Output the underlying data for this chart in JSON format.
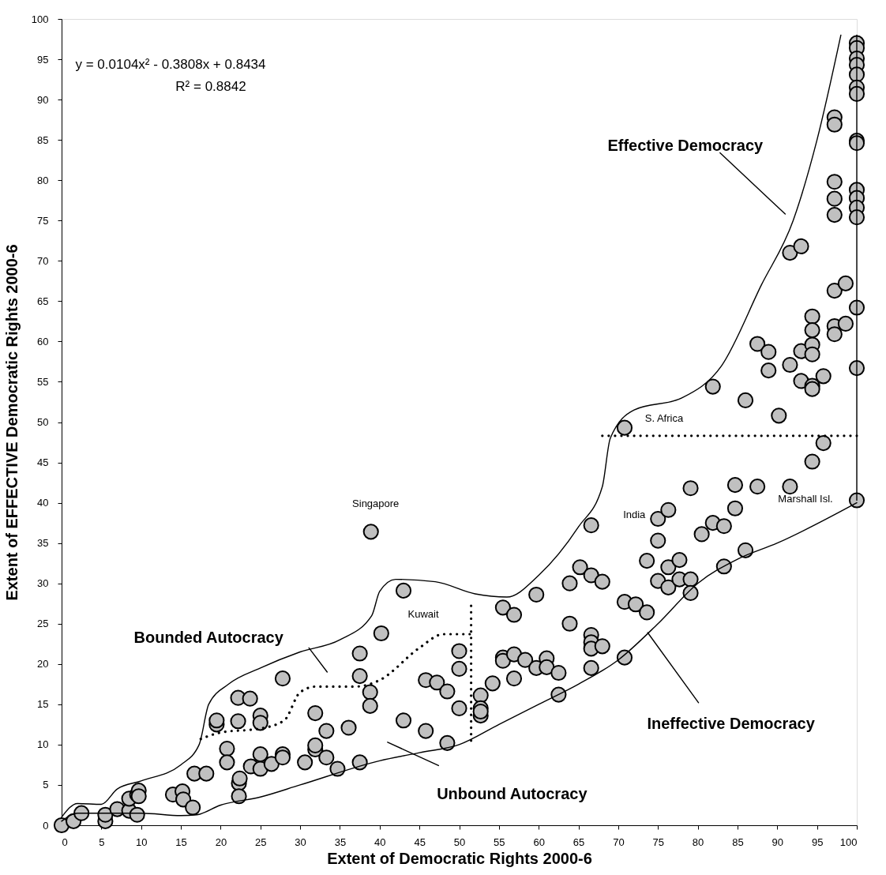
{
  "chart_data": {
    "type": "scatter",
    "xlabel": "Extent of Democratic Rights 2000-6",
    "ylabel": "Extent of EFFECTIVE Democratic Rights 2000-6",
    "xlim": [
      0,
      100
    ],
    "ylim": [
      0,
      100
    ],
    "xticks": [
      0,
      5,
      10,
      15,
      20,
      25,
      30,
      35,
      40,
      45,
      50,
      55,
      60,
      65,
      70,
      75,
      80,
      85,
      90,
      95,
      100
    ],
    "yticks": [
      0,
      5,
      10,
      15,
      20,
      25,
      30,
      35,
      40,
      45,
      50,
      55,
      60,
      65,
      70,
      75,
      80,
      85,
      90,
      95,
      100
    ],
    "series": [
      {
        "marker": "circle",
        "color": "#c0c0c0",
        "x": [
          0,
          1.5,
          2.5,
          5.5,
          5.5,
          7,
          8.5,
          8.5,
          9.5,
          9.5,
          9.7,
          9.7,
          14,
          15.2,
          15.3,
          16.5,
          16.7,
          18.2,
          19.5,
          19.5,
          20.8,
          20.8,
          22.2,
          22.2,
          22.3,
          22.3,
          22.4,
          23.7,
          23.8,
          25,
          25,
          25,
          25,
          26.4,
          27.8,
          27.8,
          27.8,
          30.6,
          31.9,
          31.9,
          31.9,
          33.3,
          33.3,
          34.7,
          36.1,
          37.5,
          37.5,
          37.5,
          38.8,
          38.8,
          38.9,
          40.2,
          43,
          43,
          45.8,
          45.8,
          47.2,
          48.5,
          48.5,
          50,
          50,
          50,
          52.7,
          52.7,
          52.7,
          52.7,
          54.2,
          55.5,
          55.5,
          55.5,
          56.9,
          56.9,
          56.9,
          58.3,
          59.7,
          59.7,
          61,
          61,
          62.5,
          62.5,
          63.9,
          63.9,
          65.2,
          66.6,
          66.6,
          66.6,
          66.6,
          66.6,
          66.6,
          68,
          68,
          70.8,
          70.8,
          70.8,
          72.2,
          73.6,
          73.6,
          75,
          75,
          75,
          76.3,
          76.3,
          76.3,
          77.7,
          77.7,
          79.1,
          79.1,
          79.1,
          80.5,
          81.9,
          81.9,
          83.3,
          83.3,
          84.7,
          84.7,
          86,
          86,
          87.5,
          87.5,
          88.9,
          88.9,
          90.2,
          91.6,
          91.6,
          91.6,
          93,
          93,
          93,
          94.4,
          94.4,
          94.4,
          94.4,
          94.4,
          94.4,
          94.4,
          95.8,
          95.8,
          97.2,
          97.2,
          97.2,
          97.2,
          97.2,
          97.2,
          97.2,
          97.2,
          98.6,
          98.6,
          100,
          100,
          100,
          100,
          100,
          100,
          100,
          100,
          100,
          100,
          100,
          100,
          100,
          100,
          100,
          100
        ],
        "values": [
          0,
          0.5,
          1.5,
          0.5,
          1.3,
          2,
          1.8,
          3.3,
          3.8,
          1.3,
          4.3,
          3.6,
          3.8,
          4.2,
          3.2,
          2.2,
          6.4,
          6.4,
          12.5,
          13,
          9.5,
          7.8,
          15.8,
          12.9,
          5.2,
          3.6,
          5.8,
          15.7,
          7.3,
          13.6,
          12.7,
          8.8,
          7,
          7.6,
          18.2,
          8.8,
          8.4,
          7.8,
          13.9,
          9.4,
          9.9,
          11.7,
          8.4,
          7,
          12.1,
          21.3,
          18.5,
          7.8,
          16.5,
          14.8,
          36.4,
          23.8,
          29.1,
          13,
          18,
          11.7,
          17.7,
          16.6,
          10.2,
          21.6,
          19.4,
          14.5,
          16.1,
          14.5,
          13.6,
          14.1,
          17.6,
          27,
          20.8,
          20.4,
          26.1,
          21.2,
          18.2,
          20.5,
          28.6,
          19.5,
          20.7,
          19.6,
          18.9,
          16.2,
          30,
          25,
          32,
          37.2,
          31,
          23.6,
          22.7,
          21.9,
          19.5,
          30.2,
          22.2,
          49.3,
          27.7,
          20.8,
          27.4,
          26.4,
          32.8,
          38,
          35.3,
          30.3,
          39.1,
          32,
          29.5,
          32.9,
          30.5,
          41.8,
          30.5,
          28.8,
          36.1,
          54.4,
          37.5,
          37.1,
          32.1,
          42.2,
          39.3,
          52.7,
          34.1,
          59.7,
          42,
          58.7,
          56.4,
          50.8,
          71,
          57.1,
          42,
          71.8,
          58.8,
          55.1,
          63.1,
          61.4,
          59.6,
          58.4,
          54.5,
          54.1,
          45.1,
          55.7,
          47.4,
          87.8,
          86.9,
          79.8,
          77.7,
          75.7,
          66.3,
          61.9,
          60.9,
          67.2,
          62.2,
          97,
          96.4,
          95.1,
          94.3,
          93.1,
          91.5,
          90.7,
          84.9,
          84.6,
          78.8,
          77.8,
          76.6,
          75.4,
          64.2,
          56.7,
          40.3
        ]
      },
      {
        "type": "line",
        "color": "#000000",
        "line_style": "solid",
        "x": [
          0,
          2,
          5,
          7,
          10,
          15,
          17.3,
          18.5,
          21,
          25,
          30,
          35,
          39,
          40,
          42,
          47,
          52,
          56,
          60,
          65,
          68,
          69,
          72,
          78,
          83,
          88,
          92,
          95,
          98
        ],
        "values": [
          1,
          2.7,
          2.6,
          4.5,
          5.5,
          7.5,
          10,
          15,
          17.5,
          19.5,
          21.5,
          23,
          26,
          29,
          30.5,
          30.2,
          28.7,
          28.3,
          31,
          37,
          42,
          48,
          51.5,
          53,
          57,
          67,
          75,
          85,
          98
        ]
      },
      {
        "type": "line",
        "color": "#000000",
        "line_style": "solid",
        "x": [
          0,
          2,
          5,
          10,
          15,
          17,
          20,
          25,
          30,
          40,
          45,
          50,
          55,
          60,
          65,
          70,
          75,
          80,
          85,
          90,
          100
        ],
        "values": [
          0.5,
          1.5,
          1.5,
          1.5,
          1.2,
          1.3,
          2.5,
          3.5,
          5,
          8,
          9,
          10,
          12.5,
          15,
          17.5,
          20.5,
          25,
          30,
          33,
          35,
          40
        ]
      },
      {
        "type": "line",
        "color": "#000000",
        "line_style": "solid",
        "x": [
          100,
          100
        ],
        "values": [
          40.3,
          98
        ]
      },
      {
        "type": "line",
        "color": "#000000",
        "line_style": "dotted",
        "x": [
          17.5,
          20,
          25,
          28,
          30,
          32,
          37,
          40,
          45,
          48,
          51.5
        ],
        "values": [
          10.7,
          11.5,
          12,
          13,
          16.5,
          17.2,
          17.2,
          18,
          22,
          23.7,
          23.7
        ]
      },
      {
        "type": "line",
        "color": "#000000",
        "line_style": "dotted",
        "x": [
          51.5,
          51.5
        ],
        "values": [
          10.5,
          28
        ]
      },
      {
        "type": "line",
        "color": "#000000",
        "line_style": "dotted",
        "x": [
          68,
          100
        ],
        "values": [
          48.3,
          48.3
        ]
      },
      {
        "type": "line",
        "color": "#000000",
        "line_style": "solid",
        "x": [
          82.8,
          91
        ],
        "values": [
          83.4,
          75.8
        ]
      },
      {
        "type": "line",
        "color": "#000000",
        "line_style": "solid",
        "x": [
          31.1,
          33.4
        ],
        "values": [
          22,
          19
        ]
      },
      {
        "type": "line",
        "color": "#000000",
        "line_style": "solid",
        "x": [
          41,
          47.4
        ],
        "values": [
          10.3,
          7.4
        ]
      },
      {
        "type": "line",
        "color": "#000000",
        "line_style": "solid",
        "x": [
          73.7,
          80.1
        ],
        "values": [
          23.9,
          15.2
        ]
      }
    ],
    "annotations": [
      "y = 0.0104x² - 0.3808x + 0.8434",
      "R² = 0.8842",
      {
        "text": "Singapore",
        "x": 38.9,
        "y": 36.4
      },
      {
        "text": "Kuwait",
        "x": 43,
        "y": 29.1
      },
      {
        "text": "S. Africa",
        "x": 70.8,
        "y": 49.3
      },
      {
        "text": "India",
        "x": 75,
        "y": 38
      },
      {
        "text": "Marshall Isl.",
        "x": 100,
        "y": 40.3
      },
      {
        "text": "Effective Democracy",
        "x": 82.8,
        "y": 83.4
      },
      {
        "text": "Bounded Autocracy",
        "x": 31.1,
        "y": 22
      },
      {
        "text": "Unbound Autocracy",
        "x": 47.4,
        "y": 7.4
      },
      {
        "text": "Ineffective Democracy",
        "x": 80.1,
        "y": 15.2
      }
    ]
  }
}
